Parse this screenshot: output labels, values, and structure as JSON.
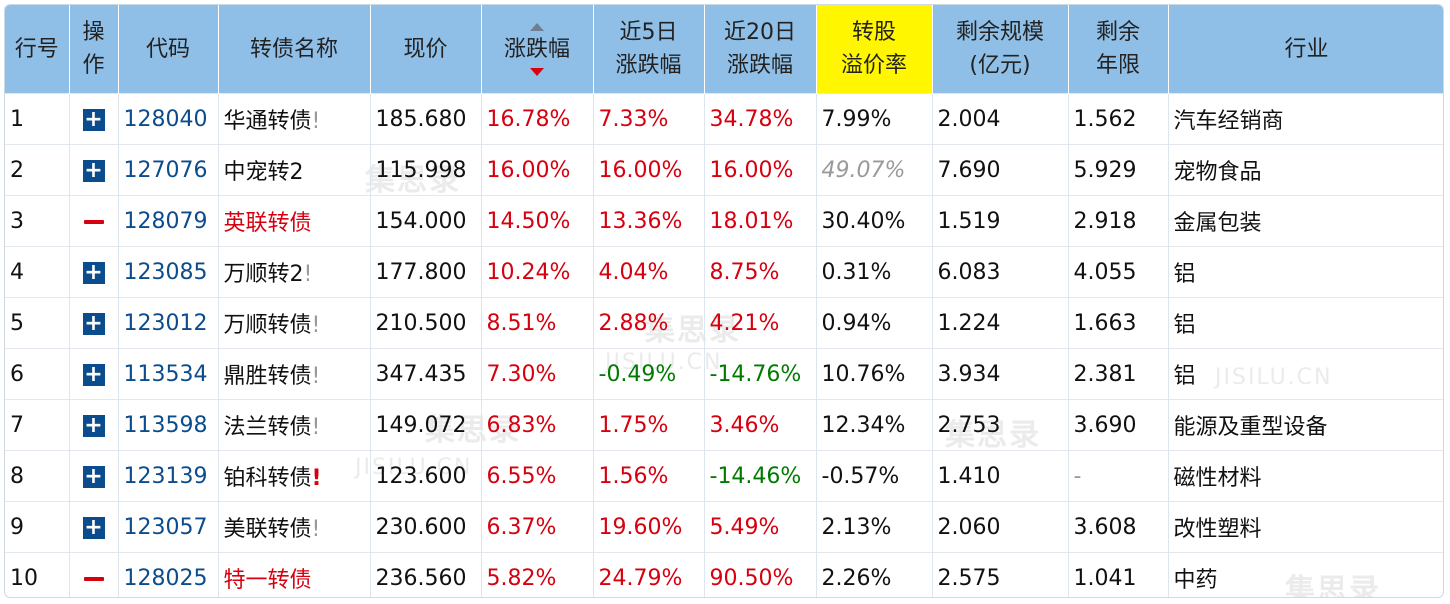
{
  "watermark": {
    "cn": "集思录",
    "en": "JISILU.CN"
  },
  "table": {
    "headers": {
      "row_no": [
        "行号"
      ],
      "op": [
        "操",
        "作"
      ],
      "code": [
        "代码"
      ],
      "name": [
        "转债名称"
      ],
      "price": [
        "现价"
      ],
      "change": [
        "涨跌幅"
      ],
      "change5": [
        "近5日",
        "涨跌幅"
      ],
      "change20": [
        "近20日",
        "涨跌幅"
      ],
      "premium": [
        "转股",
        "溢价率"
      ],
      "scale": [
        "剩余规模",
        "(亿元)"
      ],
      "years": [
        "剩余",
        "年限"
      ],
      "industry": [
        "行业"
      ]
    },
    "rows": [
      {
        "no": "1",
        "op": "plus",
        "code": "128040",
        "name": "华通转债",
        "warn": "!",
        "price": "185.680",
        "change": "16.78%",
        "change5": "7.33%",
        "change20": "34.78%",
        "premium": "7.99%",
        "scale": "2.004",
        "years": "1.562",
        "industry": "汽车经销商"
      },
      {
        "no": "2",
        "op": "plus",
        "code": "127076",
        "name": "中宠转2",
        "warn": "",
        "price": "115.998",
        "change": "16.00%",
        "change5": "16.00%",
        "change20": "16.00%",
        "premium": "49.07%",
        "scale": "7.690",
        "years": "5.929",
        "industry": "宠物食品"
      },
      {
        "no": "3",
        "op": "minus",
        "code": "128079",
        "name": "英联转债",
        "warn": "",
        "price": "154.000",
        "change": "14.50%",
        "change5": "13.36%",
        "change20": "18.01%",
        "premium": "30.40%",
        "scale": "1.519",
        "years": "2.918",
        "industry": "金属包装"
      },
      {
        "no": "4",
        "op": "plus",
        "code": "123085",
        "name": "万顺转2",
        "warn": "!",
        "price": "177.800",
        "change": "10.24%",
        "change5": "4.04%",
        "change20": "8.75%",
        "premium": "0.31%",
        "scale": "6.083",
        "years": "4.055",
        "industry": "铝"
      },
      {
        "no": "5",
        "op": "plus",
        "code": "123012",
        "name": "万顺转债",
        "warn": "!",
        "price": "210.500",
        "change": "8.51%",
        "change5": "2.88%",
        "change20": "4.21%",
        "premium": "0.94%",
        "scale": "1.224",
        "years": "1.663",
        "industry": "铝"
      },
      {
        "no": "6",
        "op": "plus",
        "code": "113534",
        "name": "鼎胜转债",
        "warn": "!",
        "price": "347.435",
        "change": "7.30%",
        "change5": "-0.49%",
        "change20": "-14.76%",
        "premium": "10.76%",
        "scale": "3.934",
        "years": "2.381",
        "industry": "铝"
      },
      {
        "no": "7",
        "op": "plus",
        "code": "113598",
        "name": "法兰转债",
        "warn": "!",
        "price": "149.072",
        "change": "6.83%",
        "change5": "1.75%",
        "change20": "3.46%",
        "premium": "12.34%",
        "scale": "2.753",
        "years": "3.690",
        "industry": "能源及重型设备"
      },
      {
        "no": "8",
        "op": "plus",
        "code": "123139",
        "name": "铂科转债",
        "warn": "!",
        "price": "123.600",
        "change": "6.55%",
        "change5": "1.56%",
        "change20": "-14.46%",
        "premium": "-0.57%",
        "scale": "1.410",
        "years": "-",
        "industry": "磁性材料"
      },
      {
        "no": "9",
        "op": "plus",
        "code": "123057",
        "name": "美联转债",
        "warn": "!",
        "price": "230.600",
        "change": "6.37%",
        "change5": "19.60%",
        "change20": "5.49%",
        "premium": "2.13%",
        "scale": "2.060",
        "years": "3.608",
        "industry": "改性塑料"
      },
      {
        "no": "10",
        "op": "minus",
        "code": "128025",
        "name": "特一转债",
        "warn": "",
        "price": "236.560",
        "change": "5.82%",
        "change5": "24.79%",
        "change20": "90.50%",
        "premium": "2.26%",
        "scale": "2.575",
        "years": "1.041",
        "industry": "中药"
      }
    ]
  },
  "colors": {
    "header_bg": "#8fbfe6",
    "highlight_header": "#fff600",
    "up_red": "#d6000f",
    "down_green": "#007a00",
    "code_blue": "#0b4c8c"
  }
}
